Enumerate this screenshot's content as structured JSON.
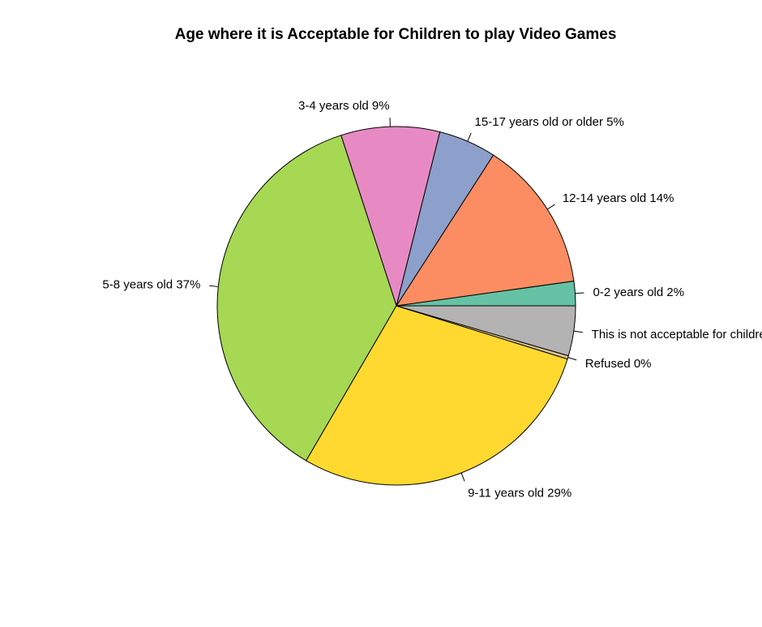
{
  "chart_data": {
    "type": "pie",
    "title": "Age where it is Acceptable for Children to play Video Games",
    "start_angle_deg": 0,
    "direction": "counterclockwise",
    "slices": [
      {
        "label": "0-2 years old 2%",
        "value": 2.2,
        "color": "#66c2a5"
      },
      {
        "label": "12-14 years old 14%",
        "value": 13.7,
        "color": "#fc8d62"
      },
      {
        "label": "15-17 years old or older 5%",
        "value": 5.2,
        "color": "#8da0cb"
      },
      {
        "label": "3-4 years old 9%",
        "value": 8.9,
        "color": "#e78ac3"
      },
      {
        "label": "5-8 years old 37%",
        "value": 36.6,
        "color": "#a6d854"
      },
      {
        "label": "9-11 years old 29%",
        "value": 28.6,
        "color": "#ffd92f"
      },
      {
        "label": "Refused 0%",
        "value": 0.3,
        "color": "#e5c494"
      },
      {
        "label": "This is not acceptable for children",
        "value": 4.5,
        "color": "#b3b3b3"
      }
    ]
  }
}
